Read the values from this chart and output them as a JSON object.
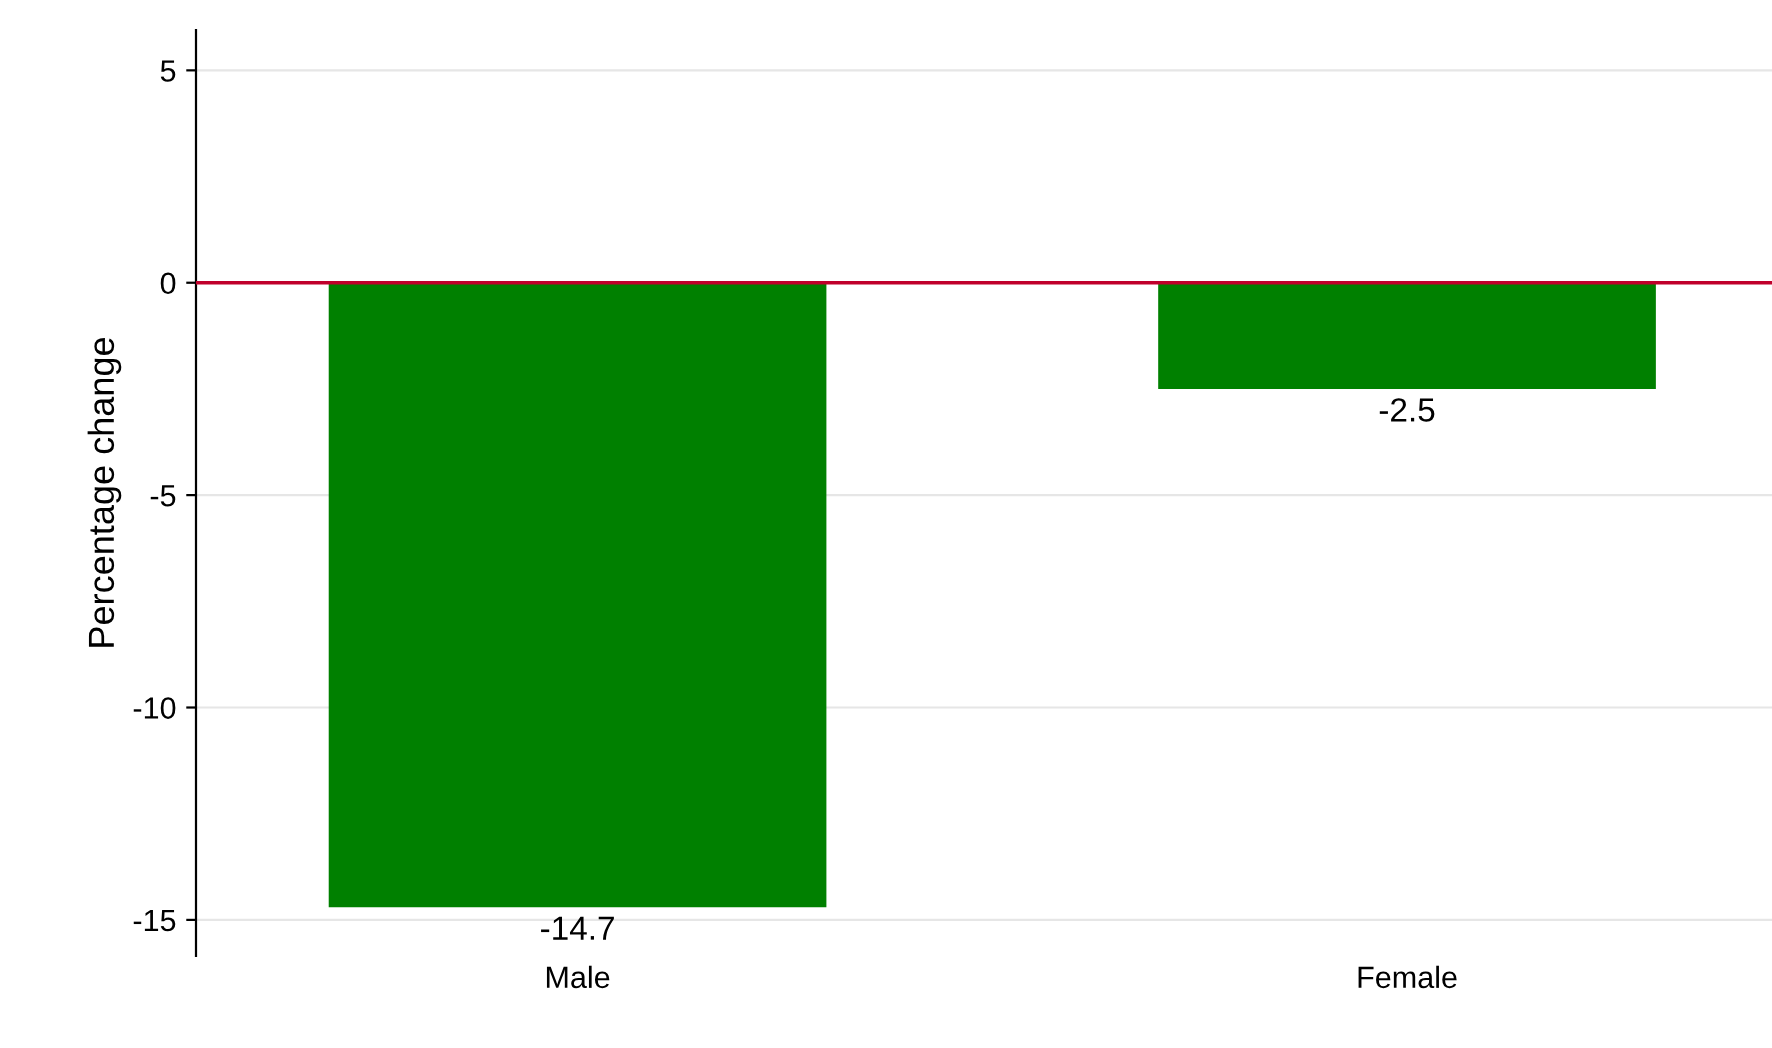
{
  "chart_data": {
    "type": "bar",
    "ylabel": "Percentage change",
    "categories": [
      "Male",
      "Female"
    ],
    "values": [
      -14.7,
      -2.5
    ],
    "color": "#008000",
    "ylim": [
      -15.85,
      5.95
    ],
    "yticks": [
      {
        "value": -15,
        "label": "-15"
      },
      {
        "value": -10,
        "label": "-10"
      },
      {
        "value": -5,
        "label": "-5"
      },
      0,
      5
    ],
    "ref_lines": [
      {
        "axis": "y",
        "value": 0,
        "color": "#c0002b"
      }
    ],
    "grid": "y",
    "data_labels": true
  }
}
